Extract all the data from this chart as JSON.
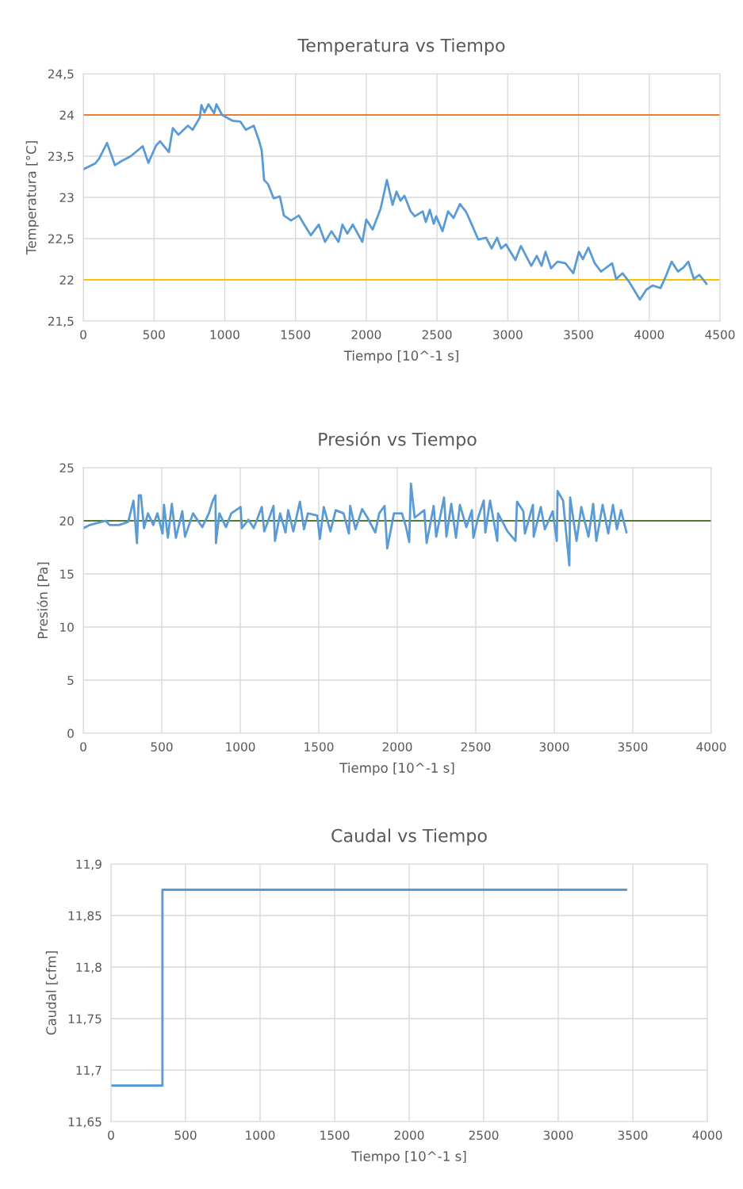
{
  "chart_data": [
    {
      "type": "line",
      "title": "Temperatura vs Tiempo",
      "xlabel": "Tiempo [10^-1 s]",
      "ylabel": "Temperatura [°C]",
      "xlim": [
        0,
        4500
      ],
      "xticks": [
        0,
        500,
        1000,
        1500,
        2000,
        2500,
        3000,
        3500,
        4000,
        4500
      ],
      "ylim": [
        21.5,
        24.5
      ],
      "yticks": [
        {
          "value": 21.5,
          "label": "21,5"
        },
        22,
        {
          "value": 22.5,
          "label": "22,5"
        },
        23,
        {
          "value": 23.5,
          "label": "23,5"
        },
        24,
        {
          "value": 24.5,
          "label": "24,5"
        }
      ],
      "grid": true,
      "series": [
        {
          "color": "#5b9bd5",
          "x": [
            0,
            84,
            112,
            168,
            224,
            270,
            336,
            420,
            460,
            515,
            543,
            605,
            633,
            672,
            740,
            773,
            824,
            835,
            857,
            885,
            925,
            941,
            981,
            1054,
            1110,
            1149,
            1205,
            1244,
            1261,
            1278,
            1306,
            1345,
            1390,
            1418,
            1468,
            1524,
            1558,
            1608,
            1664,
            1709,
            1754,
            1804,
            1832,
            1866,
            1905,
            1972,
            2000,
            2045,
            2101,
            2146,
            2186,
            2214,
            2242,
            2270,
            2314,
            2343,
            2399,
            2421,
            2449,
            2477,
            2494,
            2539,
            2578,
            2617,
            2662,
            2707,
            2746,
            2791,
            2847,
            2886,
            2925,
            2953,
            2987,
            3054,
            3093,
            3166,
            3205,
            3239,
            3267,
            3306,
            3351,
            3407,
            3463,
            3503,
            3531,
            3570,
            3615,
            3659,
            3738,
            3766,
            3811,
            3856,
            3934,
            3979,
            4024,
            4080,
            4119,
            4158,
            4203,
            4242,
            4276,
            4315,
            4354,
            4405
          ],
          "values": [
            23.34,
            23.41,
            23.47,
            23.66,
            23.39,
            23.44,
            23.5,
            23.62,
            23.42,
            23.63,
            23.68,
            23.55,
            23.84,
            23.76,
            23.87,
            23.82,
            23.97,
            24.12,
            24.03,
            24.13,
            24.02,
            24.13,
            24.0,
            23.93,
            23.92,
            23.82,
            23.87,
            23.68,
            23.57,
            23.21,
            23.16,
            22.99,
            23.01,
            22.78,
            22.72,
            22.78,
            22.68,
            22.54,
            22.67,
            22.46,
            22.59,
            22.46,
            22.67,
            22.56,
            22.67,
            22.46,
            22.73,
            22.61,
            22.86,
            23.21,
            22.91,
            23.07,
            22.96,
            23.02,
            22.83,
            22.77,
            22.83,
            22.7,
            22.85,
            22.68,
            22.77,
            22.59,
            22.83,
            22.75,
            22.92,
            22.82,
            22.67,
            22.49,
            22.51,
            22.38,
            22.51,
            22.38,
            22.43,
            22.24,
            22.41,
            22.17,
            22.29,
            22.17,
            22.34,
            22.14,
            22.22,
            22.2,
            22.08,
            22.34,
            22.25,
            22.39,
            22.2,
            22.1,
            22.2,
            22.01,
            22.08,
            21.98,
            21.76,
            21.88,
            21.93,
            21.9,
            22.05,
            22.22,
            22.1,
            22.15,
            22.22,
            22.01,
            22.06,
            21.95
          ]
        }
      ],
      "ref_lines": [
        {
          "axis": "y",
          "value": 24,
          "color": "#ed7d31"
        },
        {
          "axis": "y",
          "value": 22,
          "color": "#ffc000"
        }
      ]
    },
    {
      "type": "line",
      "title": "Presión vs Tiempo",
      "xlabel": "Tiempo [10^-1 s]",
      "ylabel": "Presión [Pa]",
      "xlim": [
        0,
        4000
      ],
      "xticks": [
        0,
        500,
        1000,
        1500,
        2000,
        2500,
        3000,
        3500,
        4000
      ],
      "ylim": [
        0,
        25
      ],
      "yticks": [
        0,
        5,
        10,
        15,
        20,
        25
      ],
      "grid": true,
      "series": [
        {
          "color": "#5b9bd5",
          "x": [
            0,
            42,
            143,
            168,
            227,
            286,
            320,
            342,
            354,
            367,
            387,
            412,
            446,
            472,
            505,
            514,
            539,
            564,
            590,
            631,
            648,
            699,
            758,
            800,
            825,
            842,
            845,
            867,
            909,
            943,
            1002,
            1010,
            1052,
            1086,
            1137,
            1153,
            1212,
            1221,
            1254,
            1288,
            1305,
            1338,
            1380,
            1406,
            1431,
            1490,
            1507,
            1532,
            1574,
            1608,
            1658,
            1692,
            1700,
            1734,
            1776,
            1810,
            1860,
            1885,
            1919,
            1936,
            1979,
            2030,
            2056,
            2076,
            2087,
            2111,
            2172,
            2187,
            2232,
            2248,
            2298,
            2313,
            2344,
            2374,
            2399,
            2440,
            2475,
            2485,
            2515,
            2551,
            2561,
            2591,
            2637,
            2642,
            2702,
            2753,
            2763,
            2803,
            2813,
            2864,
            2869,
            2914,
            2940,
            2990,
            3016,
            3021,
            3056,
            3096,
            3101,
            3142,
            3172,
            3218,
            3248,
            3268,
            3308,
            3344,
            3374,
            3399,
            3425,
            3460
          ],
          "values": [
            19.3,
            19.6,
            20.0,
            19.6,
            19.6,
            19.9,
            21.9,
            17.9,
            22.4,
            22.4,
            19.3,
            20.7,
            19.6,
            20.7,
            18.8,
            21.5,
            18.4,
            21.6,
            18.4,
            20.9,
            18.5,
            20.7,
            19.4,
            20.7,
            21.9,
            22.4,
            17.9,
            20.7,
            19.4,
            20.7,
            21.3,
            19.3,
            20.1,
            19.3,
            21.3,
            19.0,
            21.4,
            18.1,
            20.7,
            18.9,
            21.0,
            19.0,
            21.8,
            19.2,
            20.7,
            20.5,
            18.3,
            21.3,
            19.0,
            21.0,
            20.7,
            18.8,
            21.4,
            19.2,
            21.1,
            20.3,
            18.9,
            20.7,
            21.4,
            17.4,
            20.7,
            20.7,
            19.4,
            18.0,
            23.5,
            20.3,
            21.0,
            17.9,
            21.4,
            18.5,
            22.2,
            18.5,
            21.6,
            18.4,
            21.5,
            19.4,
            21.0,
            18.4,
            20.3,
            21.9,
            18.9,
            21.9,
            18.1,
            20.7,
            19.0,
            18.1,
            21.8,
            20.9,
            18.8,
            21.5,
            18.5,
            21.3,
            19.2,
            20.9,
            18.1,
            22.8,
            21.9,
            15.8,
            22.2,
            18.1,
            21.3,
            18.5,
            21.6,
            18.1,
            21.5,
            18.8,
            21.5,
            19.2,
            21.0,
            18.9
          ]
        }
      ],
      "ref_lines": [
        {
          "axis": "y",
          "value": 20,
          "color": "#4e7a35"
        }
      ]
    },
    {
      "type": "step",
      "title": "Caudal vs Tiempo",
      "xlabel": "Tiempo [10^-1 s]",
      "ylabel": "Caudal [cfm]",
      "xlim": [
        0,
        4000
      ],
      "xticks": [
        0,
        500,
        1000,
        1500,
        2000,
        2500,
        3000,
        3500,
        4000
      ],
      "ylim": [
        11.65,
        11.9
      ],
      "yticks": [
        {
          "value": 11.65,
          "label": "11,65"
        },
        {
          "value": 11.7,
          "label": "11,7"
        },
        {
          "value": 11.75,
          "label": "11,75"
        },
        {
          "value": 11.8,
          "label": "11,8"
        },
        {
          "value": 11.85,
          "label": "11,85"
        },
        {
          "value": 11.9,
          "label": "11,9"
        }
      ],
      "grid": true,
      "series": [
        {
          "color": "#5b9bd5",
          "x": [
            0,
            345,
            3457
          ],
          "values": [
            11.685,
            11.875,
            11.875
          ]
        }
      ]
    }
  ]
}
